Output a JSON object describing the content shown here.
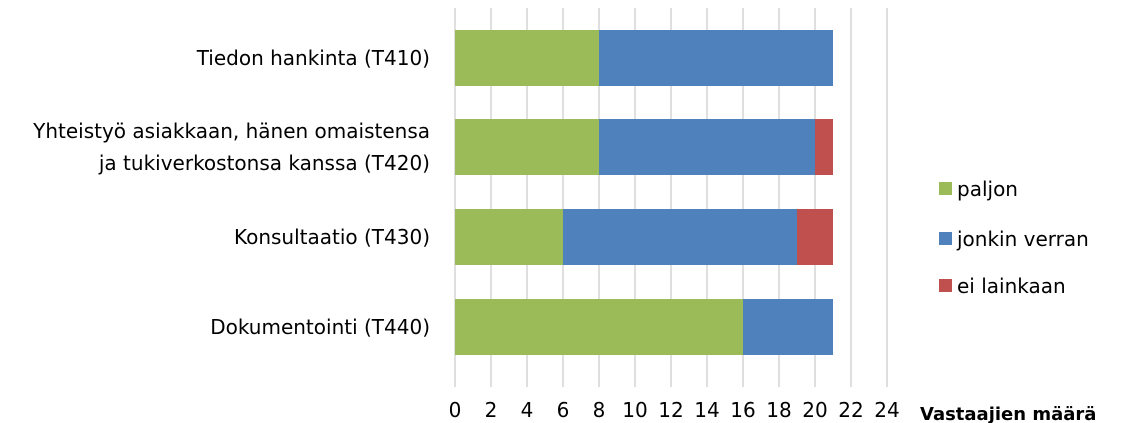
{
  "chart_data": {
    "type": "bar",
    "orientation": "horizontal",
    "stacked": true,
    "categories": [
      [
        "Tiedon hankinta (T410)"
      ],
      [
        "Yhteistyö asiakkaan, hänen omaistensa",
        "ja tukiverkostonsa kanssa (T420)"
      ],
      [
        "Konsultaatio (T430)"
      ],
      [
        "Dokumentointi (T440)"
      ]
    ],
    "series": [
      {
        "name": "paljon",
        "color": "#9bbb59",
        "values": [
          8,
          8,
          6,
          16
        ]
      },
      {
        "name": "jonkin verran",
        "color": "#4f81bd",
        "values": [
          13,
          12,
          13,
          5
        ]
      },
      {
        "name": "ei lainkaan",
        "color": "#c0504d",
        "values": [
          0,
          1,
          2,
          0
        ]
      }
    ],
    "xlabel": "Vastaajien määrä",
    "ylabel": "",
    "title": "",
    "xlim": [
      0,
      24
    ],
    "xticks": [
      0,
      2,
      4,
      6,
      8,
      10,
      12,
      14,
      16,
      18,
      20,
      22,
      24
    ],
    "grid": "vertical",
    "legend_position": "right"
  }
}
